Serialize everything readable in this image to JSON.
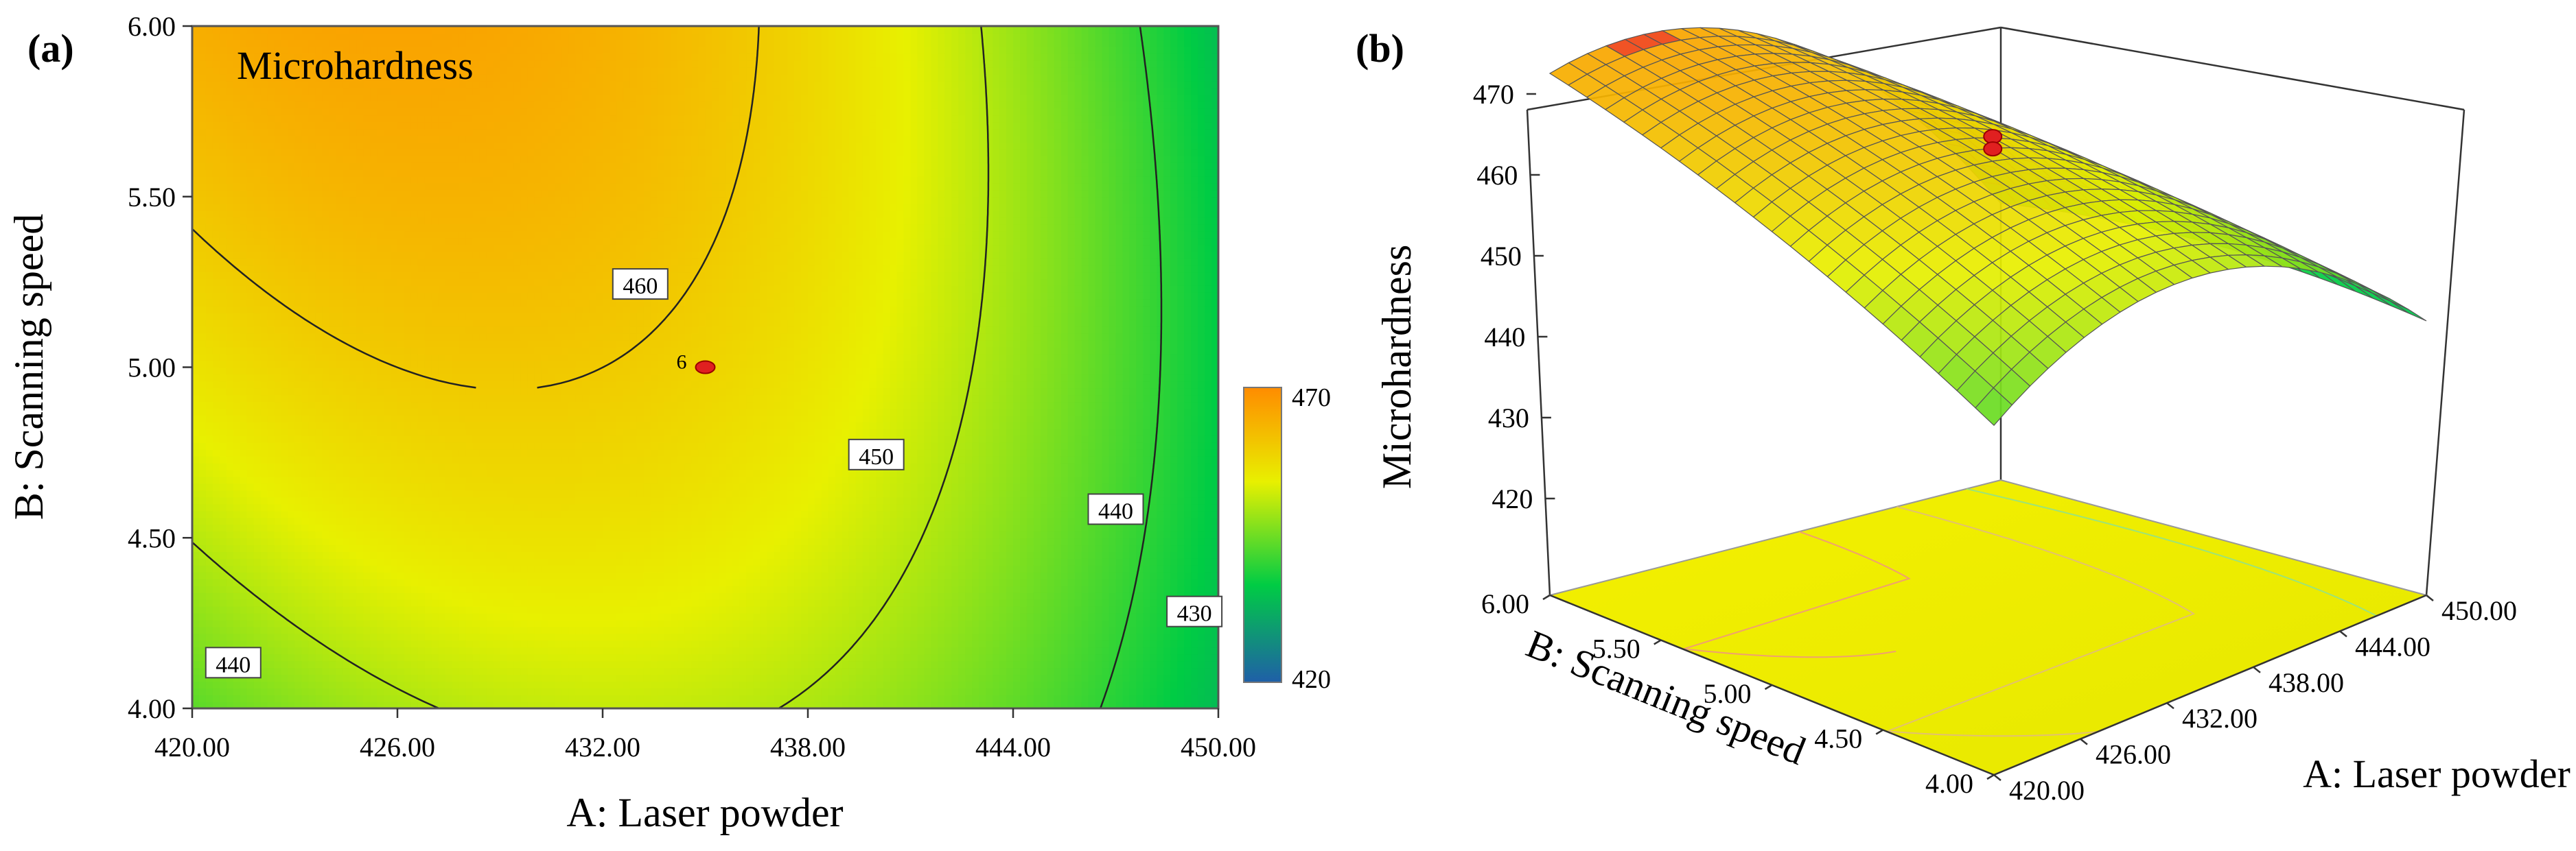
{
  "chart_data": [
    {
      "panel": "(a)",
      "type": "heatmap",
      "subtype": "contour",
      "title": "Microhardness",
      "xlabel": "A: Laser powder",
      "ylabel": "B: Scanning speed",
      "xlim": [
        420,
        450
      ],
      "ylim": [
        4.0,
        6.0
      ],
      "xticks": [
        "420.00",
        "426.00",
        "432.00",
        "438.00",
        "444.00",
        "450.00"
      ],
      "yticks": [
        "4.00",
        "4.50",
        "5.00",
        "5.50",
        "6.00"
      ],
      "contour_levels": [
        {
          "label": "460",
          "value": 460,
          "label_at": [
            433.1,
            5.24
          ]
        },
        {
          "label": "450",
          "value": 450,
          "label_at": [
            440.0,
            4.74
          ]
        },
        {
          "label": "440",
          "value": 440,
          "label_at": [
            447.0,
            4.58
          ]
        },
        {
          "label": "440",
          "value": 440,
          "label_at": [
            421.2,
            4.13
          ]
        },
        {
          "label": "430",
          "value": 430,
          "label_at": [
            449.3,
            4.28
          ]
        }
      ],
      "design_point": {
        "x": 435,
        "y": 5.0,
        "label": "6"
      },
      "colorbar": {
        "min": 420,
        "max": 470,
        "min_label": "420",
        "max_label": "470",
        "colors": [
          "#1f5fa8",
          "#00cc44",
          "#e8f000",
          "#ff8c00"
        ]
      },
      "grid": false
    },
    {
      "panel": "(b)",
      "type": "surface3d",
      "zlabel": "Microhardness",
      "xlabel": "A: Laser powder",
      "ylabel": "B: Scanning speed",
      "xticks": [
        "420.00",
        "426.00",
        "432.00",
        "438.00",
        "444.00",
        "450.00"
      ],
      "yticks": [
        "4.00",
        "4.50",
        "5.00",
        "5.50",
        "6.00"
      ],
      "zticks": [
        "420",
        "430",
        "440",
        "450",
        "460",
        "470"
      ],
      "xlim": [
        420,
        450
      ],
      "ylim": [
        4.0,
        6.0
      ],
      "zlim": [
        415,
        470
      ],
      "corner_values": {
        "x420_y6": 461,
        "x450_y6": 440,
        "x420_y4": 433,
        "x450_y4": 420
      },
      "design_point": {
        "x": 435,
        "y": 5.0,
        "z": 458
      }
    }
  ]
}
